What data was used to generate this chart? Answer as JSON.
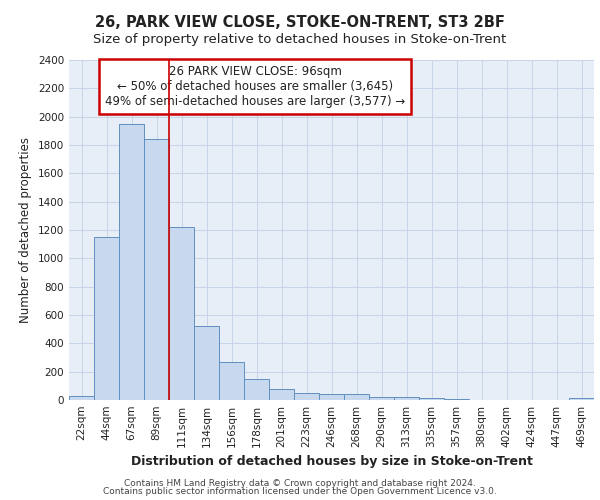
{
  "title": "26, PARK VIEW CLOSE, STOKE-ON-TRENT, ST3 2BF",
  "subtitle": "Size of property relative to detached houses in Stoke-on-Trent",
  "xlabel": "Distribution of detached houses by size in Stoke-on-Trent",
  "ylabel": "Number of detached properties",
  "categories": [
    "22sqm",
    "44sqm",
    "67sqm",
    "89sqm",
    "111sqm",
    "134sqm",
    "156sqm",
    "178sqm",
    "201sqm",
    "223sqm",
    "246sqm",
    "268sqm",
    "290sqm",
    "313sqm",
    "335sqm",
    "357sqm",
    "380sqm",
    "402sqm",
    "424sqm",
    "447sqm",
    "469sqm"
  ],
  "values": [
    30,
    1150,
    1950,
    1840,
    1220,
    520,
    265,
    150,
    80,
    50,
    45,
    40,
    20,
    18,
    12,
    5,
    0,
    0,
    0,
    0,
    12
  ],
  "bar_color": "#c8d8ee",
  "bar_edge_color": "#6090c0",
  "red_line_index": 3.5,
  "annotation_line1": "26 PARK VIEW CLOSE: 96sqm",
  "annotation_line2": "← 50% of detached houses are smaller (3,645)",
  "annotation_line3": "49% of semi-detached houses are larger (3,577) →",
  "annotation_box_color": "#ffffff",
  "annotation_box_edge": "#cc0000",
  "ylim": [
    0,
    2400
  ],
  "yticks": [
    0,
    200,
    400,
    600,
    800,
    1000,
    1200,
    1400,
    1600,
    1800,
    2000,
    2200,
    2400
  ],
  "grid_color": "#c8d4e8",
  "background_color": "#e8eef8",
  "footer_line1": "Contains HM Land Registry data © Crown copyright and database right 2024.",
  "footer_line2": "Contains public sector information licensed under the Open Government Licence v3.0.",
  "title_fontsize": 10.5,
  "subtitle_fontsize": 9.5,
  "xlabel_fontsize": 9,
  "ylabel_fontsize": 8.5,
  "tick_fontsize": 7.5,
  "annotation_fontsize": 8.5,
  "footer_fontsize": 6.5
}
